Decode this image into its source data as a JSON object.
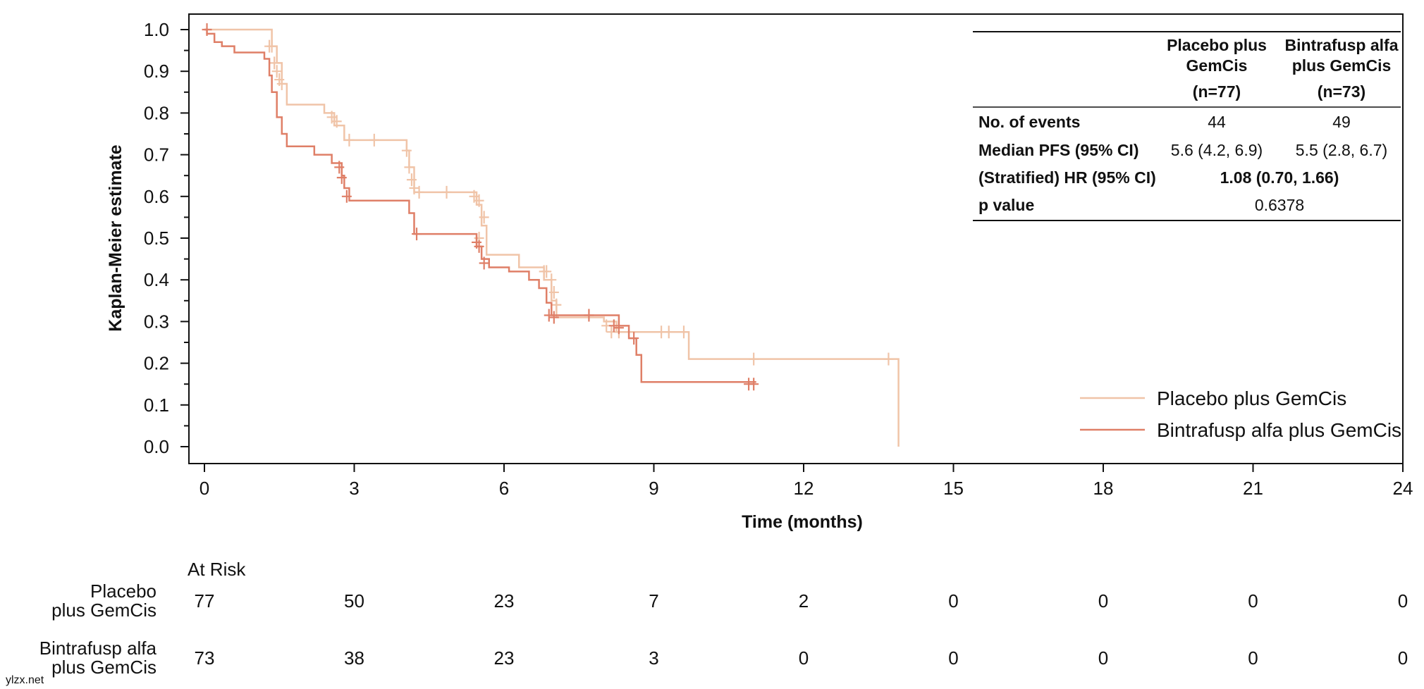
{
  "chart_data": {
    "type": "line",
    "subtype": "kaplan-meier",
    "xlabel": "Time (months)",
    "ylabel": "Kaplan-Meier estimate",
    "xlim": [
      0,
      24
    ],
    "ylim": [
      0,
      1.0
    ],
    "x_ticks": [
      "0",
      "3",
      "6",
      "9",
      "12",
      "15",
      "18",
      "21",
      "24"
    ],
    "y_ticks": [
      "0.0",
      "0.1",
      "0.2",
      "0.3",
      "0.4",
      "0.5",
      "0.6",
      "0.7",
      "0.8",
      "0.9",
      "1.0"
    ],
    "legend_position": "bottom-right",
    "series": [
      {
        "name": "Placebo plus GemCis",
        "color": "#f0c4a8",
        "steps": [
          [
            0,
            1.0
          ],
          [
            1.35,
            0.96
          ],
          [
            1.45,
            0.92
          ],
          [
            1.55,
            0.87
          ],
          [
            1.65,
            0.82
          ],
          [
            2.4,
            0.8
          ],
          [
            2.6,
            0.77
          ],
          [
            2.8,
            0.735
          ],
          [
            4.05,
            0.71
          ],
          [
            4.1,
            0.67
          ],
          [
            4.2,
            0.61
          ],
          [
            5.45,
            0.58
          ],
          [
            5.55,
            0.53
          ],
          [
            5.65,
            0.46
          ],
          [
            6.3,
            0.43
          ],
          [
            6.8,
            0.4
          ],
          [
            6.95,
            0.35
          ],
          [
            7.05,
            0.31
          ],
          [
            8.0,
            0.3
          ],
          [
            8.25,
            0.275
          ],
          [
            9.7,
            0.21
          ],
          [
            13.9,
            0.0
          ]
        ],
        "end": 13.9,
        "censored": [
          [
            1.3,
            0.96
          ],
          [
            1.35,
            0.96
          ],
          [
            1.4,
            0.92
          ],
          [
            1.45,
            0.9
          ],
          [
            1.5,
            0.88
          ],
          [
            1.55,
            0.87
          ],
          [
            2.55,
            0.79
          ],
          [
            2.65,
            0.78
          ],
          [
            2.9,
            0.735
          ],
          [
            3.4,
            0.735
          ],
          [
            4.05,
            0.71
          ],
          [
            4.1,
            0.67
          ],
          [
            4.15,
            0.64
          ],
          [
            4.2,
            0.62
          ],
          [
            4.3,
            0.61
          ],
          [
            4.85,
            0.61
          ],
          [
            5.4,
            0.6
          ],
          [
            5.5,
            0.59
          ],
          [
            5.6,
            0.55
          ],
          [
            5.5,
            0.5
          ],
          [
            6.8,
            0.42
          ],
          [
            6.85,
            0.42
          ],
          [
            6.95,
            0.4
          ],
          [
            7.0,
            0.37
          ],
          [
            7.05,
            0.34
          ],
          [
            8.05,
            0.29
          ],
          [
            8.15,
            0.275
          ],
          [
            8.3,
            0.275
          ],
          [
            9.15,
            0.275
          ],
          [
            9.3,
            0.275
          ],
          [
            9.6,
            0.275
          ],
          [
            11.0,
            0.21
          ],
          [
            13.7,
            0.21
          ]
        ]
      },
      {
        "name": "Bintrafusp alfa plus GemCis",
        "color": "#df7f67",
        "steps": [
          [
            0,
            1.0
          ],
          [
            0.05,
            0.99
          ],
          [
            0.2,
            0.97
          ],
          [
            0.35,
            0.96
          ],
          [
            0.6,
            0.945
          ],
          [
            1.2,
            0.93
          ],
          [
            1.3,
            0.89
          ],
          [
            1.35,
            0.85
          ],
          [
            1.45,
            0.79
          ],
          [
            1.55,
            0.75
          ],
          [
            1.65,
            0.72
          ],
          [
            2.2,
            0.7
          ],
          [
            2.55,
            0.68
          ],
          [
            2.75,
            0.65
          ],
          [
            2.8,
            0.62
          ],
          [
            2.9,
            0.59
          ],
          [
            4.1,
            0.56
          ],
          [
            4.2,
            0.51
          ],
          [
            5.45,
            0.48
          ],
          [
            5.55,
            0.45
          ],
          [
            5.7,
            0.43
          ],
          [
            6.1,
            0.42
          ],
          [
            6.5,
            0.4
          ],
          [
            6.7,
            0.38
          ],
          [
            6.85,
            0.345
          ],
          [
            6.95,
            0.315
          ],
          [
            8.3,
            0.29
          ],
          [
            8.5,
            0.26
          ],
          [
            8.65,
            0.22
          ],
          [
            8.75,
            0.155
          ]
        ],
        "end": 11.05,
        "censored": [
          [
            0.05,
            1.0
          ],
          [
            2.7,
            0.67
          ],
          [
            2.75,
            0.645
          ],
          [
            2.85,
            0.6
          ],
          [
            4.25,
            0.51
          ],
          [
            5.45,
            0.49
          ],
          [
            5.5,
            0.48
          ],
          [
            5.6,
            0.44
          ],
          [
            6.9,
            0.315
          ],
          [
            7.0,
            0.31
          ],
          [
            7.7,
            0.315
          ],
          [
            8.2,
            0.29
          ],
          [
            8.3,
            0.285
          ],
          [
            8.6,
            0.26
          ],
          [
            10.9,
            0.15
          ],
          [
            11.0,
            0.15
          ]
        ]
      }
    ]
  },
  "stats_table": {
    "columns": [
      "Placebo plus GemCis",
      "Bintrafusp alfa plus GemCis"
    ],
    "col_headers": [
      [
        "Placebo plus",
        "GemCis",
        "(n=77)"
      ],
      [
        "Bintrafusp alfa",
        "plus GemCis",
        "(n=73)"
      ]
    ],
    "rows": [
      {
        "label": "No. of events",
        "values": [
          "44",
          "49"
        ]
      },
      {
        "label": "Median PFS (95% CI)",
        "values": [
          "5.6 (4.2, 6.9)",
          "5.5 (2.8, 6.7)"
        ]
      },
      {
        "label": "(Stratified) HR (95% CI)",
        "merged_value": "1.08 (0.70, 1.66)"
      },
      {
        "label": "p value",
        "merged_value": "0.6378"
      }
    ]
  },
  "legend": [
    {
      "label": "Placebo plus GemCis",
      "color": "#f0c4a8"
    },
    {
      "label": "Bintrafusp alfa plus GemCis",
      "color": "#df7f67"
    }
  ],
  "at_risk": {
    "title": "At Risk",
    "rows": [
      {
        "label_lines": [
          "Placebo",
          "plus GemCis"
        ],
        "values": [
          "77",
          "50",
          "23",
          "7",
          "2",
          "0",
          "0",
          "0",
          "0"
        ]
      },
      {
        "label_lines": [
          "Bintrafusp alfa",
          "plus GemCis"
        ],
        "values": [
          "73",
          "38",
          "23",
          "3",
          "0",
          "0",
          "0",
          "0",
          "0"
        ]
      }
    ]
  },
  "watermark": "ylzx.net",
  "watermark_color": "#9b30b5"
}
